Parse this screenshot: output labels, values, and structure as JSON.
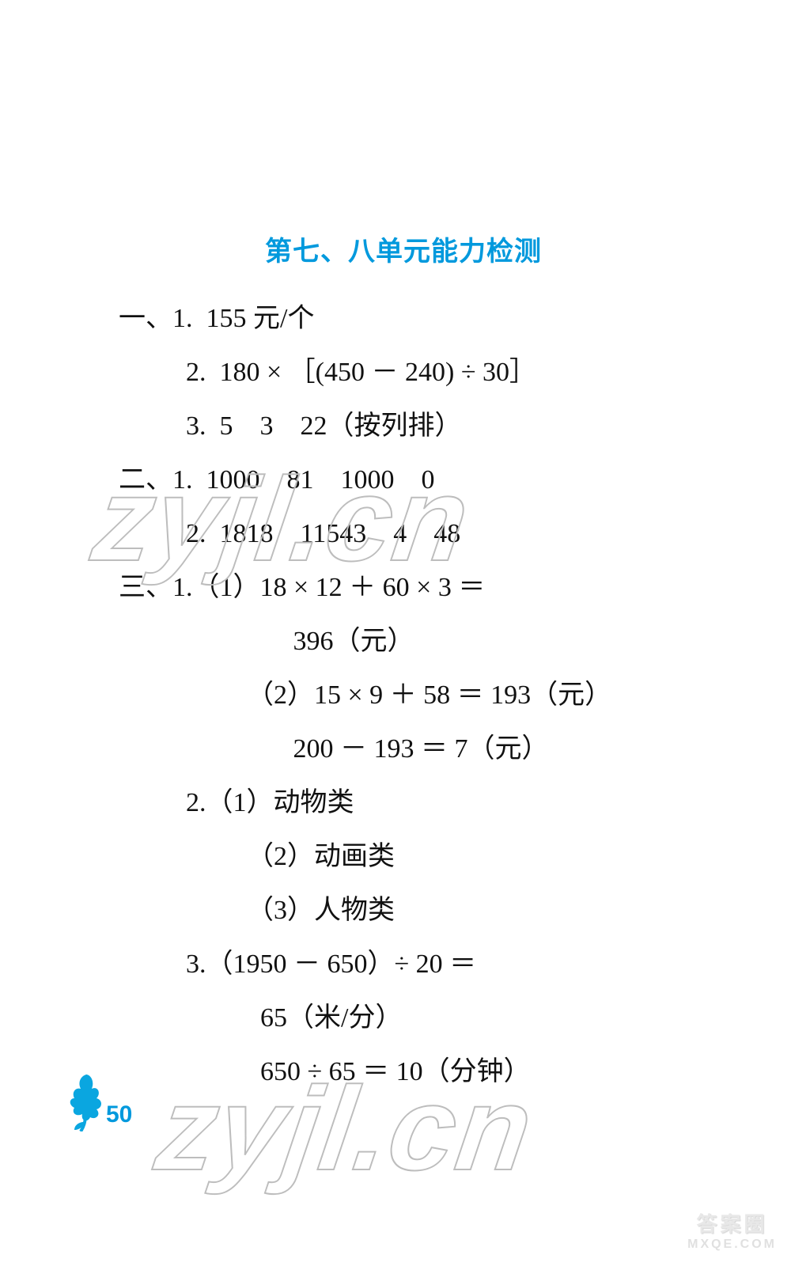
{
  "title": "第七、八单元能力检测",
  "lines": [
    {
      "cls": "indent-0",
      "text": "一、1.  155 元/个"
    },
    {
      "cls": "indent-1",
      "text": "2.  180 × ［(450 － 240) ÷ 30］"
    },
    {
      "cls": "indent-1",
      "text": "3.  5    3    22（按列排）"
    },
    {
      "cls": "indent-0",
      "text": "二、1.  1000    81    1000    0"
    },
    {
      "cls": "indent-1",
      "text": "2.  1818    11543    4    48"
    },
    {
      "cls": "indent-0",
      "text": "三、1.（1）18 × 12 ＋ 60 × 3 ＝"
    },
    {
      "cls": "indent-3",
      "text": "   396（元）"
    },
    {
      "cls": "indent-2",
      "text": "（2）15 × 9 ＋ 58 ＝ 193（元）"
    },
    {
      "cls": "indent-3",
      "text": "   200 － 193 ＝ 7（元）"
    },
    {
      "cls": "indent-1",
      "text": "2.（1）动物类"
    },
    {
      "cls": "indent-2",
      "text": "（2）动画类"
    },
    {
      "cls": "indent-2",
      "text": "（3）人物类"
    },
    {
      "cls": "indent-1",
      "text": "3.（1950 － 650）÷ 20 ＝"
    },
    {
      "cls": "indent-2",
      "text": "  65（米/分）"
    },
    {
      "cls": "indent-2",
      "text": "  650 ÷ 65 ＝ 10（分钟）"
    }
  ],
  "page_number": "50",
  "watermark_text": "zyjl.cn",
  "corner": {
    "top": "答案圈",
    "bottom": "MXQE.COM"
  },
  "colors": {
    "accent": "#0099dd",
    "text": "#111111",
    "watermark_stroke": "#bdbdbd",
    "background": "#ffffff"
  }
}
